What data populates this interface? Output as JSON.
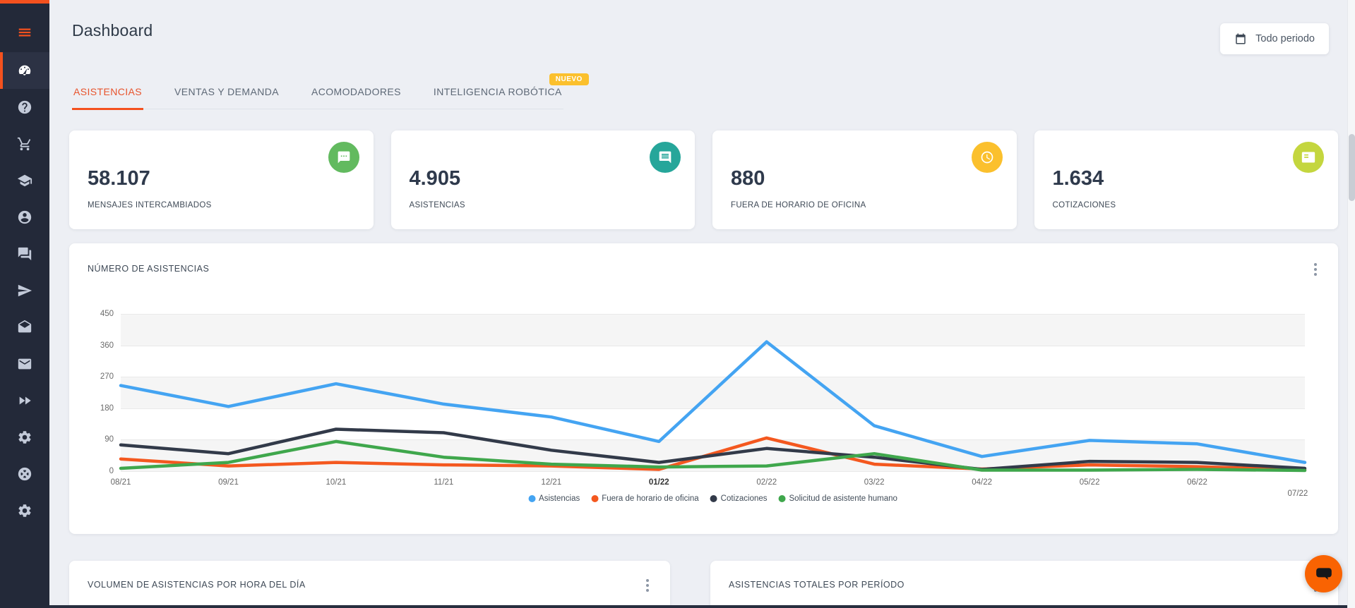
{
  "page": {
    "title": "Dashboard"
  },
  "header": {
    "period_button_label": "Todo periodo"
  },
  "sidebar": {
    "icons": [
      "menu",
      "speedometer",
      "help",
      "shopping-cart",
      "graduation-cap",
      "account",
      "forum",
      "send",
      "open-envelope",
      "mail",
      "double-arrow",
      "settings",
      "support",
      "settings"
    ]
  },
  "tabs": {
    "active_index": 0,
    "items": [
      {
        "label": "ASISTENCIAS"
      },
      {
        "label": "VENTAS Y DEMANDA"
      },
      {
        "label": "ACOMODADORES"
      },
      {
        "label": "INTELIGENCIA ROBÓTICA",
        "badge": "NUEVO"
      }
    ]
  },
  "stats": {
    "cards": [
      {
        "value": "58.107",
        "label": "MENSAJES INTERCAMBIADOS",
        "icon": "chat-icon",
        "icon_bg": "#62ba5f"
      },
      {
        "value": "4.905",
        "label": "ASISTENCIAS",
        "icon": "comment-icon",
        "icon_bg": "#26a69a"
      },
      {
        "value": "880",
        "label": "FUERA DE HORARIO DE OFICINA",
        "icon": "clock-icon",
        "icon_bg": "#fbc02d"
      },
      {
        "value": "1.634",
        "label": "COTIZACIONES",
        "icon": "list-icon",
        "icon_bg": "#c4d63e"
      }
    ]
  },
  "chart_card": {
    "title": "NÚMERO DE ASISTENCIAS"
  },
  "chart_data": {
    "type": "line",
    "title": "NÚMERO DE ASISTENCIAS",
    "categories": [
      "08/21",
      "09/21",
      "10/21",
      "11/21",
      "12/21",
      "01/22",
      "02/22",
      "03/22",
      "04/22",
      "05/22",
      "06/22",
      "07/22"
    ],
    "emphasized_x": "01/22",
    "series": [
      {
        "name": "Asistencias",
        "color": "#44a4f2",
        "values": [
          245,
          185,
          250,
          192,
          155,
          85,
          370,
          130,
          42,
          88,
          78,
          25
        ]
      },
      {
        "name": "Fuera de horario de oficina",
        "color": "#f4581f",
        "values": [
          35,
          15,
          25,
          18,
          15,
          5,
          95,
          20,
          6,
          18,
          13,
          4
        ]
      },
      {
        "name": "Cotizaciones",
        "color": "#323a49",
        "values": [
          75,
          50,
          120,
          110,
          60,
          25,
          65,
          40,
          5,
          28,
          25,
          8
        ]
      },
      {
        "name": "Solicitud de asistente humano",
        "color": "#3fa74c",
        "values": [
          8,
          25,
          85,
          40,
          20,
          12,
          15,
          50,
          3,
          3,
          5,
          2
        ]
      }
    ],
    "ylim": [
      0,
      450
    ],
    "yticks": [
      0,
      90,
      180,
      270,
      360,
      450
    ],
    "grid": "horizontal-alternating-bands",
    "band_color": "#f5f5f5",
    "legend_position": "bottom-center"
  },
  "bottom_cards": [
    {
      "title": "VOLUMEN DE ASISTENCIAS POR HORA DEL DÍA"
    },
    {
      "title": "ASISTENCIAS TOTALES POR PERÍODO"
    }
  ],
  "colors": {
    "accent": "#f4511e",
    "tab_active_text": "#e8542d",
    "badge_bg": "#fbc02d",
    "sidebar_bg": "#232939",
    "page_bg": "#edeff4",
    "chat_widget_bg": "#f96302"
  }
}
